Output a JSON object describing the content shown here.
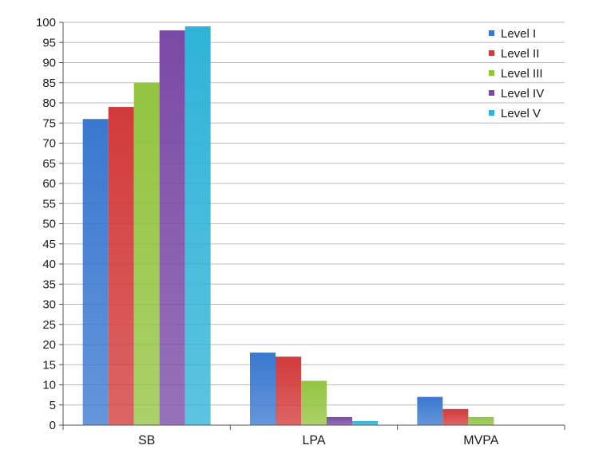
{
  "chart_data": {
    "type": "bar",
    "categories": [
      "SB",
      "LPA",
      "MVPA"
    ],
    "series": [
      {
        "name": "Level I",
        "values": [
          76,
          18,
          7
        ],
        "color": "#3a78d0"
      },
      {
        "name": "Level II",
        "values": [
          79,
          17,
          4
        ],
        "color": "#d23a3a"
      },
      {
        "name": "Level III",
        "values": [
          85,
          11,
          2
        ],
        "color": "#93c440"
      },
      {
        "name": "Level IV",
        "values": [
          98,
          2,
          0
        ],
        "color": "#7a4aa6"
      },
      {
        "name": "Level V",
        "values": [
          99,
          1,
          0
        ],
        "color": "#2fb3d8"
      }
    ],
    "ylim": [
      0,
      100
    ],
    "yticks": [
      "0",
      "5",
      "10",
      "15",
      "20",
      "25",
      "30",
      "35",
      "40",
      "45",
      "50",
      "55",
      "60",
      "65",
      "70",
      "75",
      "80",
      "85",
      "90",
      "95",
      "100"
    ],
    "grid": true,
    "legend_position": "top-right",
    "title": "",
    "xlabel": "",
    "ylabel": ""
  }
}
